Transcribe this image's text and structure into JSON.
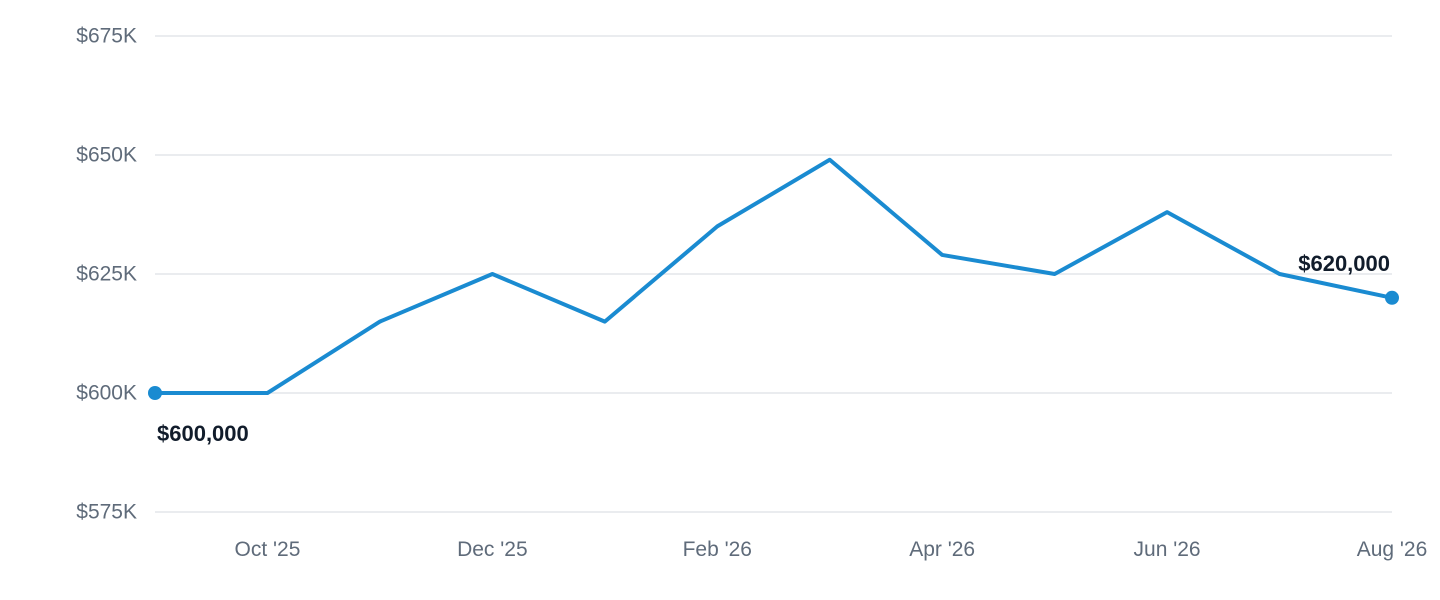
{
  "chart_data": {
    "type": "line",
    "title": "",
    "xlabel": "",
    "ylabel": "",
    "x": [
      "Sep '25",
      "Oct '25",
      "Nov '25",
      "Dec '25",
      "Jan '26",
      "Feb '26",
      "Mar '26",
      "Apr '26",
      "May '26",
      "Jun '26",
      "Jul '26",
      "Aug '26"
    ],
    "x_tick_labels": [
      "Oct '25",
      "Dec '25",
      "Feb '26",
      "Apr '26",
      "Jun '26",
      "Aug '26"
    ],
    "series": [
      {
        "values": [
          600000,
          600000,
          615000,
          625000,
          615000,
          635000,
          649000,
          629000,
          625000,
          638000,
          625000,
          620000
        ],
        "color": "#1a8bd1"
      }
    ],
    "ylim": [
      575000,
      675000
    ],
    "y_ticks": [
      575000,
      600000,
      625000,
      650000,
      675000
    ],
    "y_tick_labels": [
      "$575K",
      "$600K",
      "$625K",
      "$650K",
      "$675K"
    ],
    "grid": true,
    "annotations": [
      {
        "index": 0,
        "text": "$600,000",
        "placement": "below-right"
      },
      {
        "index": 11,
        "text": "$620,000",
        "placement": "above-left"
      }
    ],
    "endpoint_markers": true
  }
}
